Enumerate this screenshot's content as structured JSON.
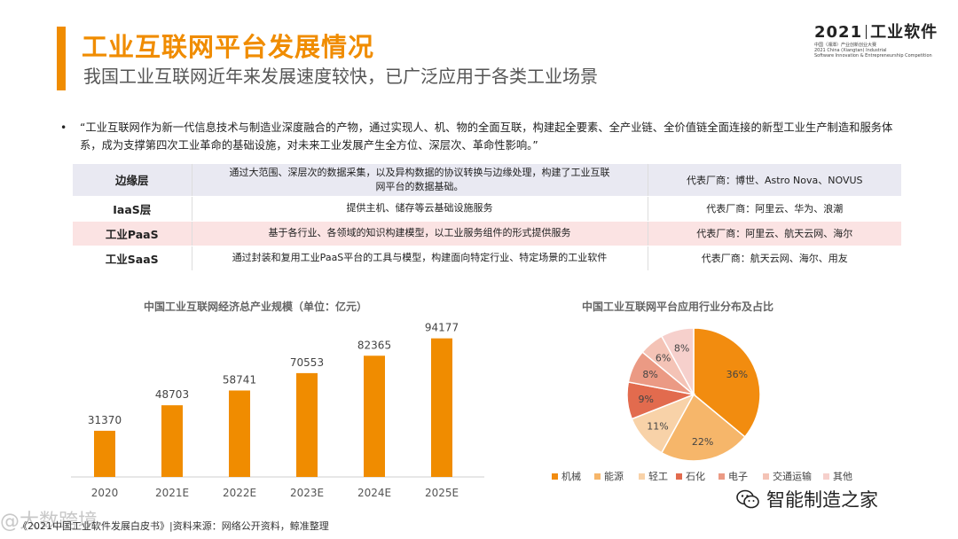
{
  "header": {
    "title": "工业互联网平台发展情况",
    "subtitle": "我国工业互联网近年来发展速度较快，已广泛应用于各类工业场景"
  },
  "logo": {
    "main_year": "2021",
    "main_text": "工业软件",
    "sub_line1": "中国（湘潭）产业创新创业大赛",
    "sub_line2": "2021 China (Xiangtan) Industrial",
    "sub_line3": "Software Innovation & Entrepreneurship Competition"
  },
  "quote": {
    "bullet": "•",
    "text": "“工业互联网作为新一代信息技术与制造业深度融合的产物，通过实现人、机、物的全面互联，构建起全要素、全产业链、全价值链全面连接的新型工业生产制造和服务体系，成为支撑第四次工业革命的基础设施，对未来工业发展产生全方位、深层次、革命性影响。”"
  },
  "layers": [
    {
      "name": "边缘层",
      "desc": "通过大范围、深层次的数据采集，以及异构数据的协议转换与边缘处理，构建了工业互联网平台的数据基础。",
      "vendors": "代表厂商：博世、Astro Nova、NOVUS"
    },
    {
      "name": "IaaS层",
      "desc": "提供主机、储存等云基础设施服务",
      "vendors": "代表厂商：阿里云、华为、浪潮"
    },
    {
      "name": "工业PaaS",
      "desc": "基于各行业、各领域的知识构建模型，以工业服务组件的形式提供服务",
      "vendors": "代表厂商：阿里云、航天云网、海尔"
    },
    {
      "name": "工业SaaS",
      "desc": "通过封装和复用工业PaaS平台的工具与模型，构建面向特定行业、特定场景的工业软件",
      "vendors": "代表厂商：航天云网、海尔、用友"
    }
  ],
  "chart_data": [
    {
      "type": "bar",
      "title": "中国工业互联网经济总产业规模（单位：亿元）",
      "categories": [
        "2020",
        "2021E",
        "2022E",
        "2023E",
        "2024E",
        "2025E"
      ],
      "values": [
        31370,
        48703,
        58741,
        70553,
        82365,
        94177
      ],
      "data_labels": true,
      "ylim": [
        0,
        100000
      ],
      "grid": false,
      "color": "#f08c00"
    },
    {
      "type": "pie",
      "title": "中国工业互联网平台应用行业分布及占比",
      "labels": [
        "机械",
        "能源",
        "轻工",
        "石化",
        "电子",
        "交通运输",
        "其他"
      ],
      "values": [
        36,
        22,
        11,
        9,
        8,
        6,
        8
      ],
      "value_suffix": "%",
      "colors": [
        "#f28c0f",
        "#f6b66a",
        "#f8d2a8",
        "#e26b4e",
        "#eb9a84",
        "#f4c3b6",
        "#f6d0cc"
      ],
      "legend_position": "bottom"
    }
  ],
  "footer": {
    "source": "《2021中国工业软件发展白皮书》|资料来源：网络公开资料，鲸准整理",
    "watermark": "@大数跨境",
    "wechat_name": "智能制造之家",
    "wechat_icon": "wechat-icon"
  }
}
